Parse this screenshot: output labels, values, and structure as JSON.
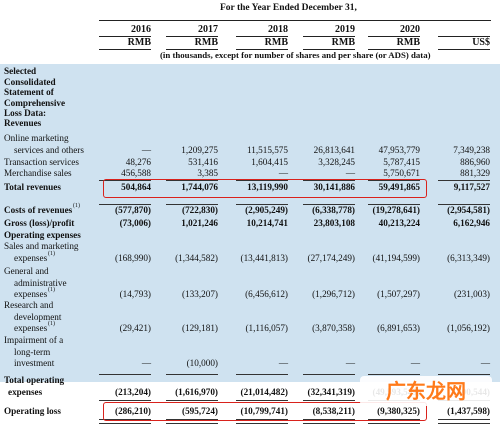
{
  "header": {
    "period": "For the Year Ended December 31,",
    "years": [
      "2016",
      "2017",
      "2018",
      "2019",
      "2020",
      ""
    ],
    "currencies": [
      "RMB",
      "RMB",
      "RMB",
      "RMB",
      "RMB",
      "US$"
    ],
    "note": "(in thousands, except for number of shares and per share (or ADS) data)"
  },
  "section_title": [
    "Selected",
    "Consolidated",
    "Statement of",
    "Comprehensive",
    "Loss Data:"
  ],
  "rows": [
    {
      "label": [
        "Revenues"
      ],
      "bold": true,
      "values": []
    },
    {
      "label": [
        "Online marketing",
        "services and others"
      ],
      "values": [
        "—",
        "1,209,275",
        "11,515,575",
        "26,813,641",
        "47,953,779",
        "7,349,238"
      ]
    },
    {
      "label": [
        "Transaction services"
      ],
      "values": [
        "48,276",
        "531,416",
        "1,604,415",
        "3,328,245",
        "5,787,415",
        "886,960"
      ]
    },
    {
      "label": [
        "Merchandise sales"
      ],
      "values": [
        "456,588",
        "3,385",
        "—",
        "—",
        "5,750,671",
        "881,329"
      ]
    },
    {
      "label": [
        "Total revenues"
      ],
      "bold": true,
      "values": [
        "504,864",
        "1,744,076",
        "13,119,990",
        "30,141,886",
        "59,491,865",
        "9,117,527"
      ]
    },
    {
      "label": [
        "Costs of revenues"
      ],
      "sup": "(1)",
      "bold": true,
      "values": [
        "(577,870)",
        "(722,830)",
        "(2,905,249)",
        "(6,338,778)",
        "(19,278,641)",
        "(2,954,581)"
      ]
    },
    {
      "label": [
        "Gross (loss)/profit"
      ],
      "bold": true,
      "values": [
        "(73,006)",
        "1,021,246",
        "10,214,741",
        "23,803,108",
        "40,213,224",
        "6,162,946"
      ]
    },
    {
      "label": [
        "Operating expenses"
      ],
      "bold": true,
      "values": []
    },
    {
      "label": [
        "Sales and marketing",
        "expenses"
      ],
      "sup": "(1)",
      "values": [
        "(168,990)",
        "(1,344,582)",
        "(13,441,813)",
        "(27,174,249)",
        "(41,194,599)",
        "(6,313,349)"
      ]
    },
    {
      "label": [
        "General and",
        "administrative",
        "expenses"
      ],
      "sup": "(1)",
      "values": [
        "(14,793)",
        "(133,207)",
        "(6,456,612)",
        "(1,296,712)",
        "(1,507,297)",
        "(231,003)"
      ]
    },
    {
      "label": [
        "Research and",
        "development",
        "expenses"
      ],
      "sup": "(1)",
      "values": [
        "(29,421)",
        "(129,181)",
        "(1,116,057)",
        "(3,870,358)",
        "(6,891,653)",
        "(1,056,192)"
      ]
    },
    {
      "label": [
        "Impairment of a",
        "long-term",
        "investment"
      ],
      "values": [
        "—",
        "(10,000)",
        "—",
        "—",
        "—",
        "—"
      ]
    },
    {
      "label": [
        "Total operating",
        "expenses"
      ],
      "bold": true,
      "values": [
        "(213,204)",
        "(1,616,970)",
        "(21,014,482)",
        "(32,341,319)",
        "(49,593,549)",
        "(7,600,544)"
      ]
    },
    {
      "label": [
        "Operating loss"
      ],
      "bold": true,
      "values": [
        "(286,210)",
        "(595,724)",
        "(10,799,741)",
        "(8,538,211)",
        "(9,380,325)",
        "(1,437,598)"
      ]
    }
  ],
  "watermark": {
    "text": "广东龙网",
    "color": "#ff7a1a"
  },
  "colors": {
    "band": "#cfe2f0",
    "highlight": "#d9221c"
  }
}
